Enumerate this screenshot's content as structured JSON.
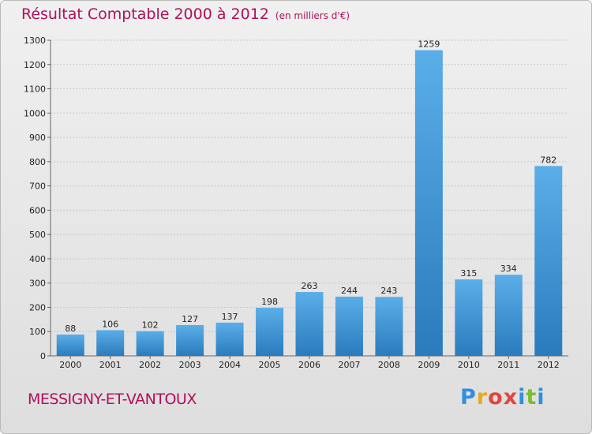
{
  "header": {
    "title": "Résultat Comptable 2000 à 2012",
    "subtitle": "(en milliers d'€)"
  },
  "footer": {
    "commune": "MESSIGNY-ET-VANTOUX",
    "logo_letters": [
      "P",
      "r",
      "o",
      "x",
      "i",
      "t",
      "i"
    ],
    "logo_colors": [
      "#2f8fdd",
      "#e9a91e",
      "#e2443f",
      "#e2443f",
      "#2f8fdd",
      "#7bbd2b",
      "#2f8fdd"
    ]
  },
  "chart_data": {
    "type": "bar",
    "title": "Résultat Comptable 2000 à 2012",
    "subtitle": "(en milliers d'€)",
    "xlabel": "",
    "ylabel": "",
    "categories": [
      "2000",
      "2001",
      "2002",
      "2003",
      "2004",
      "2005",
      "2006",
      "2007",
      "2008",
      "2009",
      "2010",
      "2011",
      "2012"
    ],
    "values": [
      88,
      106,
      102,
      127,
      137,
      198,
      263,
      244,
      243,
      1259,
      315,
      334,
      782
    ],
    "ylim": [
      0,
      1300
    ],
    "yticks": [
      0,
      100,
      200,
      300,
      400,
      500,
      600,
      700,
      800,
      900,
      1000,
      1100,
      1200,
      1300
    ],
    "grid": true,
    "bar_color_top": "#5aaee8",
    "bar_color_bottom": "#2a7bbd"
  }
}
